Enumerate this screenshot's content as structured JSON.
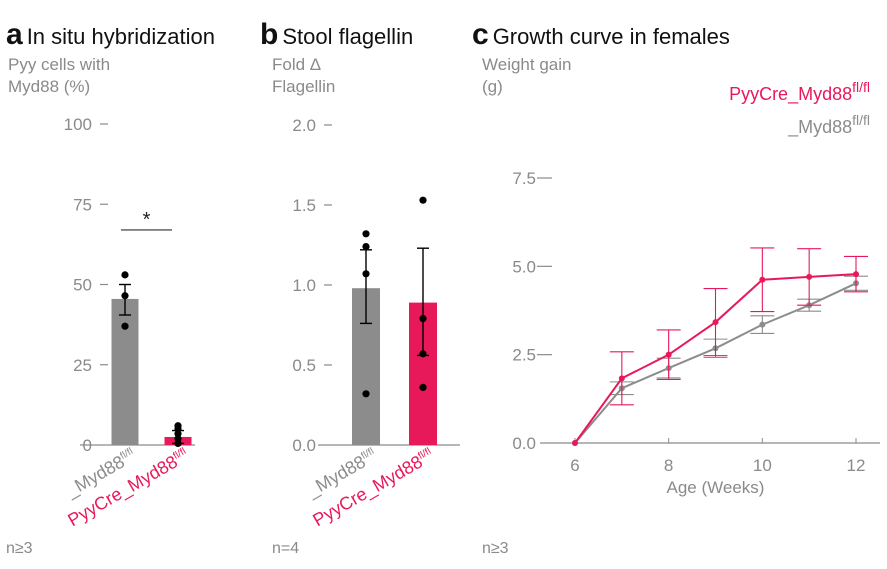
{
  "panels": {
    "a": {
      "letter": "a",
      "title": "In situ hybridization",
      "ylabel_line1": "Pyy cells with",
      "ylabel_line2": "Myd88 (%)",
      "note": "n≥3",
      "significance": "*"
    },
    "b": {
      "letter": "b",
      "title": "Stool flagellin",
      "ylabel_line1": "Fold Δ",
      "ylabel_line2": "Flagellin",
      "note": "n=4"
    },
    "c": {
      "letter": "c",
      "title": "Growth curve in females",
      "ylabel_line1": "Weight gain",
      "ylabel_line2": "(g)",
      "note": "n≥3"
    }
  },
  "colors": {
    "control": "#8c8c8c",
    "knockout": "#e8195a",
    "axis": "#8a8a8a",
    "point": "#000000"
  },
  "chart_data": [
    {
      "type": "bar",
      "title": "In situ hybridization",
      "ylabel": "Pyy cells with Myd88 (%)",
      "ylim": [
        0,
        100
      ],
      "yticks": [
        "0",
        "25",
        "50",
        "75",
        "100"
      ],
      "categories": [
        {
          "base": "_Myd88",
          "sup": "fl/fl",
          "color_key": "control"
        },
        {
          "base": "PyyCre_Myd88",
          "sup": "fl/fl",
          "color_key": "knockout"
        }
      ],
      "values": [
        45.5,
        2.5
      ],
      "error_low": [
        40.5,
        0.5
      ],
      "error_high": [
        50,
        4.5
      ],
      "points": [
        [
          53,
          46.5,
          37
        ],
        [
          6,
          5,
          3.5,
          2,
          0.5
        ]
      ],
      "significance": {
        "between": [
          0,
          1
        ],
        "label": "*",
        "y": 67
      }
    },
    {
      "type": "bar",
      "title": "Stool flagellin",
      "ylabel": "Fold Δ Flagellin",
      "ylim": [
        0,
        2.0
      ],
      "yticks": [
        "0.0",
        "0.5",
        "1.0",
        "1.5",
        "2.0"
      ],
      "categories": [
        {
          "base": "_Myd88",
          "sup": "fl/fl",
          "color_key": "control"
        },
        {
          "base": "PyyCre_Myd88",
          "sup": "fl/fl",
          "color_key": "knockout"
        }
      ],
      "values": [
        0.98,
        0.89
      ],
      "error_low": [
        0.76,
        0.56
      ],
      "error_high": [
        1.22,
        1.23
      ],
      "points": [
        [
          1.32,
          1.24,
          1.07,
          0.32
        ],
        [
          1.53,
          0.79,
          0.57,
          0.36
        ]
      ]
    },
    {
      "type": "line",
      "title": "Growth curve in females",
      "xlabel": "Age (Weeks)",
      "ylabel": "Weight gain (g)",
      "xlim": [
        5.5,
        12.6
      ],
      "ylim": [
        0,
        7.5
      ],
      "xticks": [
        "6",
        "8",
        "10",
        "12"
      ],
      "yticks": [
        "0.0",
        "2.5",
        "5.0",
        "7.5"
      ],
      "x": [
        6,
        7,
        8,
        9,
        10,
        11,
        12
      ],
      "legend_position": "top-right",
      "series": [
        {
          "name": "PyyCre_Myd88",
          "sup": "fl/fl",
          "color_key": "knockout",
          "values": [
            0,
            1.83,
            2.5,
            3.42,
            4.62,
            4.7,
            4.78
          ],
          "err": [
            0,
            0.75,
            0.7,
            0.95,
            0.9,
            0.8,
            0.5
          ]
        },
        {
          "name": "_Myd88",
          "sup": "fl/fl",
          "color_key": "control",
          "values": [
            0,
            1.55,
            2.12,
            2.68,
            3.35,
            3.9,
            4.52
          ],
          "err": [
            0,
            0.18,
            0.28,
            0.26,
            0.25,
            0.17,
            0.2
          ]
        }
      ]
    }
  ]
}
